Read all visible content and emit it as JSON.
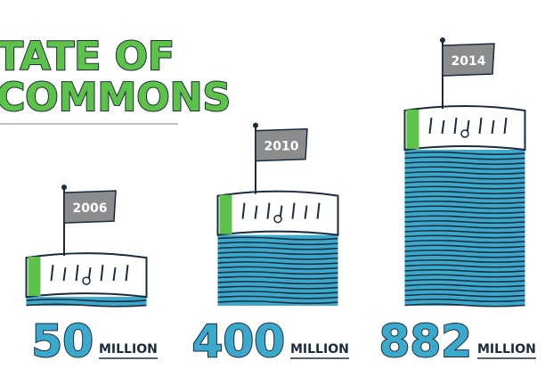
{
  "chart_data": {
    "type": "bar",
    "title_lines": [
      "TATE OF",
      "COMMONS"
    ],
    "categories": [
      "2006",
      "2010",
      "2014"
    ],
    "values": [
      50,
      400,
      882
    ],
    "unit_label": "MILLION",
    "color": "#3aa9cc"
  }
}
